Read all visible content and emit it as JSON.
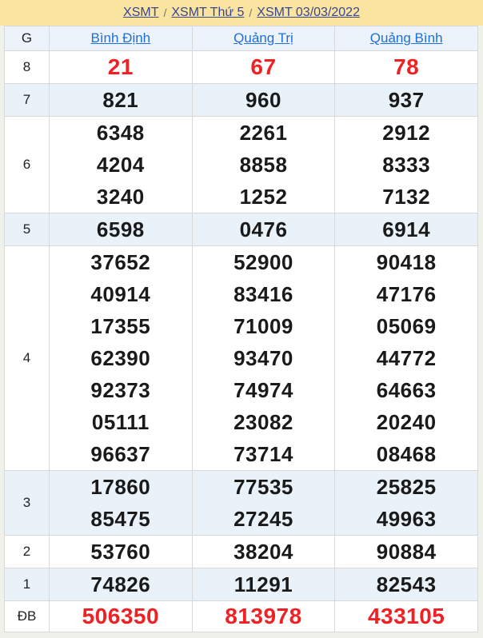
{
  "breadcrumb": {
    "separator": "/",
    "items": [
      {
        "label": "XSMT"
      },
      {
        "label": "XSMT Thứ 5"
      },
      {
        "label": "XSMT 03/03/2022"
      }
    ]
  },
  "table": {
    "prize_column_header": "G",
    "columns": [
      "Bình Định",
      "Quảng Trị",
      "Quảng Bình"
    ],
    "rows": [
      {
        "prize": "8",
        "highlight": true,
        "values": [
          [
            "21"
          ],
          [
            "67"
          ],
          [
            "78"
          ]
        ]
      },
      {
        "prize": "7",
        "highlight": false,
        "values": [
          [
            "821"
          ],
          [
            "960"
          ],
          [
            "937"
          ]
        ]
      },
      {
        "prize": "6",
        "highlight": false,
        "values": [
          [
            "6348",
            "4204",
            "3240"
          ],
          [
            "2261",
            "8858",
            "1252"
          ],
          [
            "2912",
            "8333",
            "7132"
          ]
        ]
      },
      {
        "prize": "5",
        "highlight": false,
        "values": [
          [
            "6598"
          ],
          [
            "0476"
          ],
          [
            "6914"
          ]
        ]
      },
      {
        "prize": "4",
        "highlight": false,
        "values": [
          [
            "37652",
            "40914",
            "17355",
            "62390",
            "92373",
            "05111",
            "96637"
          ],
          [
            "52900",
            "83416",
            "71009",
            "93470",
            "74974",
            "23082",
            "73714"
          ],
          [
            "90418",
            "47176",
            "05069",
            "44772",
            "64663",
            "20240",
            "08468"
          ]
        ]
      },
      {
        "prize": "3",
        "highlight": false,
        "values": [
          [
            "17860",
            "85475"
          ],
          [
            "77535",
            "27245"
          ],
          [
            "25825",
            "49963"
          ]
        ]
      },
      {
        "prize": "2",
        "highlight": false,
        "values": [
          [
            "53760"
          ],
          [
            "38204"
          ],
          [
            "90884"
          ]
        ]
      },
      {
        "prize": "1",
        "highlight": false,
        "values": [
          [
            "74826"
          ],
          [
            "11291"
          ],
          [
            "82543"
          ]
        ]
      },
      {
        "prize": "ĐB",
        "highlight": true,
        "values": [
          [
            "506350"
          ],
          [
            "813978"
          ],
          [
            "433105"
          ]
        ]
      }
    ]
  },
  "colors": {
    "page_bg": "#F1F1EC",
    "band_bg": "#F9E4A0",
    "breadcrumb_link": "#3B4590",
    "header_link": "#1D6FDC",
    "highlight_red": "#EF2125",
    "stripe_blue": "#E9F1F9",
    "header_row_bg": "#EDF3FA",
    "border": "#D8D8D8",
    "number_color": "#1A1A1A"
  }
}
